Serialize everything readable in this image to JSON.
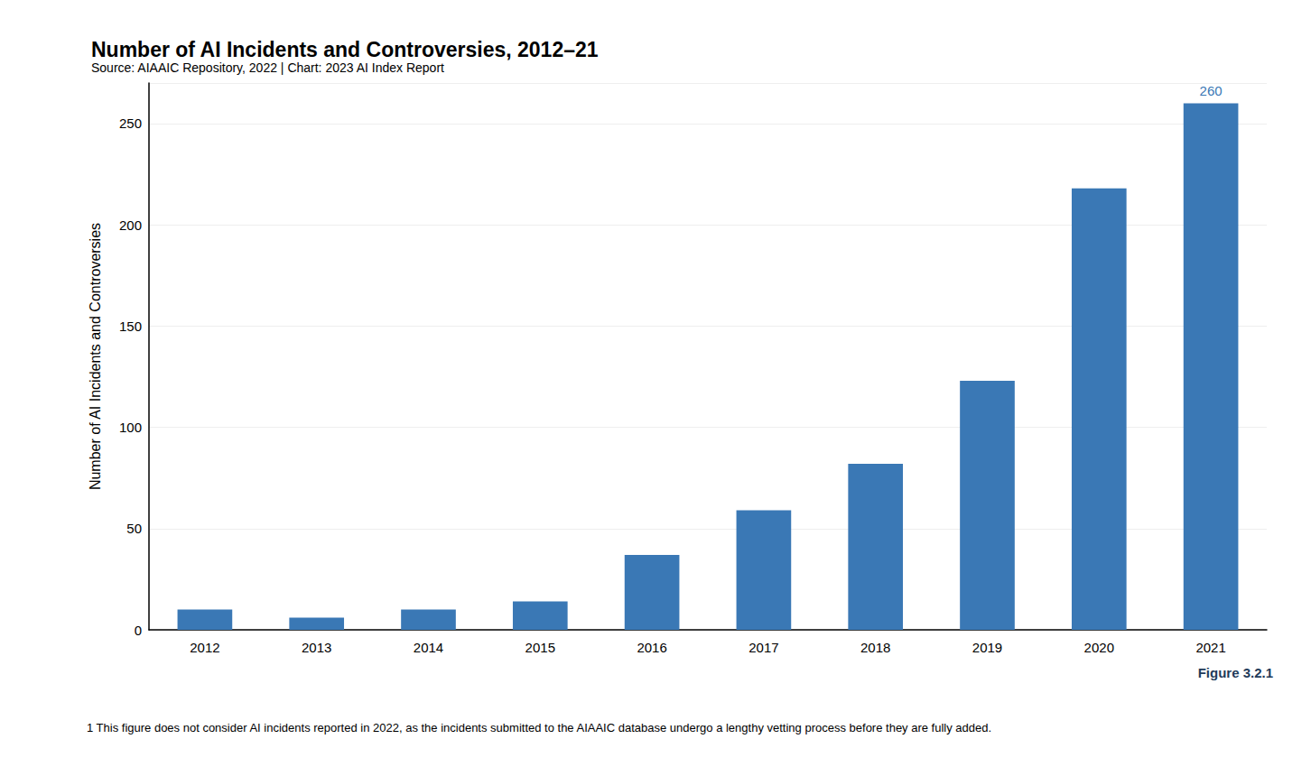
{
  "chart_data": {
    "type": "bar",
    "title": "Number of AI Incidents and Controversies, 2012–21",
    "subtitle": "Source: AIAAIC Repository, 2022 | Chart: 2023 AI Index Report",
    "y_label": "Number of AI Incidents and Controversies",
    "figure_label": "Figure 3.2.1",
    "footnote": "1 This figure does not consider AI incidents reported in 2022, as the incidents submitted to the AIAAIC database undergo a lengthy vetting process before they are fully added.",
    "categories": [
      "2012",
      "2013",
      "2014",
      "2015",
      "2016",
      "2017",
      "2018",
      "2019",
      "2020",
      "2021"
    ],
    "values": [
      10,
      6,
      10,
      14,
      37,
      59,
      82,
      123,
      218,
      260
    ],
    "data_labels": true,
    "value_labels": [
      null,
      null,
      null,
      null,
      null,
      null,
      null,
      null,
      null,
      "260"
    ],
    "color": "#3a78b5",
    "ylim": [
      0,
      270
    ],
    "yticks": [
      0,
      50,
      100,
      150,
      200,
      250
    ],
    "grid": true
  }
}
